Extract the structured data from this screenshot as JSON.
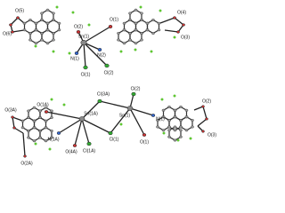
{
  "top": {
    "labels": [
      "O(5)",
      "O(6)",
      "O(2)",
      "Sn(1)",
      "N(1)",
      "N(2)",
      "O(1)",
      "O(4)",
      "O(3)",
      "Cl(1)",
      "Cl(2)"
    ]
  },
  "bottom": {
    "labels": [
      "O(3A)",
      "O(2A)",
      "O(1A)",
      "Sn(1A)",
      "N(1A)",
      "O(4A)",
      "Cl(3A)",
      "Cl(1A)",
      "Cl(1)",
      "Sn(1)",
      "Cl(2)",
      "N(1)",
      "O(1)",
      "O(2)",
      "O(3)"
    ]
  }
}
